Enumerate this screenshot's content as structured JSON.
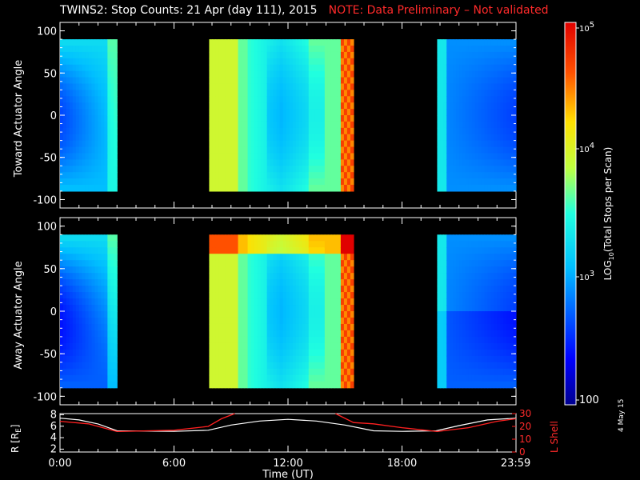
{
  "title": {
    "main": "TWINS2: Stop Counts: 21 Apr (day 111), 2015",
    "note": "NOTE: Data Preliminary – Not validated"
  },
  "footer_date": "4 May 15",
  "colors": {
    "background": "#000000",
    "note": "#ff2a2a",
    "r_line": "#ffffff",
    "lshell_line": "#ff2020"
  },
  "chart_data": [
    {
      "type": "heatmap",
      "panel": "toward",
      "ylabel": "Toward Actuator Angle",
      "ylim": [
        -110,
        110
      ],
      "yticks": [
        100,
        50,
        0,
        -50,
        -100
      ],
      "data_extent_y": [
        -90,
        90
      ],
      "xlim_hours": [
        0,
        24
      ],
      "data_segments_hours": [
        [
          0,
          3.0
        ],
        [
          7.85,
          15.45
        ],
        [
          19.85,
          24
        ]
      ],
      "colorbar": {
        "scale": "log",
        "min": 100,
        "max": 100000
      }
    },
    {
      "type": "heatmap",
      "panel": "away",
      "ylabel": "Away Actuator Angle",
      "ylim": [
        -110,
        110
      ],
      "yticks": [
        100,
        50,
        0,
        -50,
        -100
      ],
      "data_extent_y": [
        -90,
        90
      ],
      "xlim_hours": [
        0,
        24
      ],
      "data_segments_hours": [
        [
          0,
          3.0
        ],
        [
          7.85,
          15.45
        ],
        [
          19.85,
          24
        ]
      ],
      "colorbar": {
        "scale": "log",
        "min": 100,
        "max": 100000
      }
    },
    {
      "type": "line",
      "panel": "orbit",
      "ylabel_left": "R [R",
      "ylabel_left_sub": "E",
      "ylabel_left_end": "]",
      "ylabel_right": "L Shell",
      "xlabel": "Time (UT)",
      "x_tick_labels": [
        "0:00",
        "6:00",
        "12:00",
        "18:00",
        "23:59"
      ],
      "x_ticks_hours": [
        0,
        6,
        12,
        18,
        23.983
      ],
      "y_left_ticks": [
        2,
        4,
        6,
        8
      ],
      "y_left_lim": [
        1.5,
        8.2
      ],
      "y_right_ticks": [
        0,
        10,
        20,
        30
      ],
      "y_right_lim": [
        0,
        30
      ],
      "series": [
        {
          "name": "R",
          "axis": "left",
          "x": [
            0,
            1,
            2,
            3,
            6,
            7.8,
            9,
            10.5,
            12,
            13.5,
            15,
            16.5,
            18,
            19.8,
            21,
            22.5,
            24
          ],
          "y": [
            7.4,
            7.1,
            6.4,
            5.2,
            5.1,
            5.3,
            6.2,
            6.9,
            7.2,
            6.9,
            6.2,
            5.2,
            5.1,
            5.2,
            6.1,
            7.1,
            7.4
          ]
        },
        {
          "name": "L Shell",
          "axis": "right",
          "x": [
            0,
            1.5,
            3,
            6,
            7.8,
            8.5,
            9.2
          ],
          "y": [
            24,
            22,
            16,
            17,
            20,
            26,
            30
          ],
          "x2": [
            14.5,
            15.45,
            16.5,
            18,
            19.85,
            21.5,
            23,
            24
          ],
          "y2": [
            30,
            23,
            22,
            19,
            16,
            19,
            24,
            26
          ]
        }
      ]
    }
  ],
  "colorbar": {
    "ticks": [
      {
        "base": "10",
        "exp": "5"
      },
      {
        "base": "10",
        "exp": "4"
      },
      {
        "base": "10",
        "exp": "3"
      },
      {
        "base": "100",
        "exp": ""
      }
    ],
    "label_pre": "LOG",
    "label_sub": "10",
    "label_post": "(Total Stops per Scan)"
  }
}
